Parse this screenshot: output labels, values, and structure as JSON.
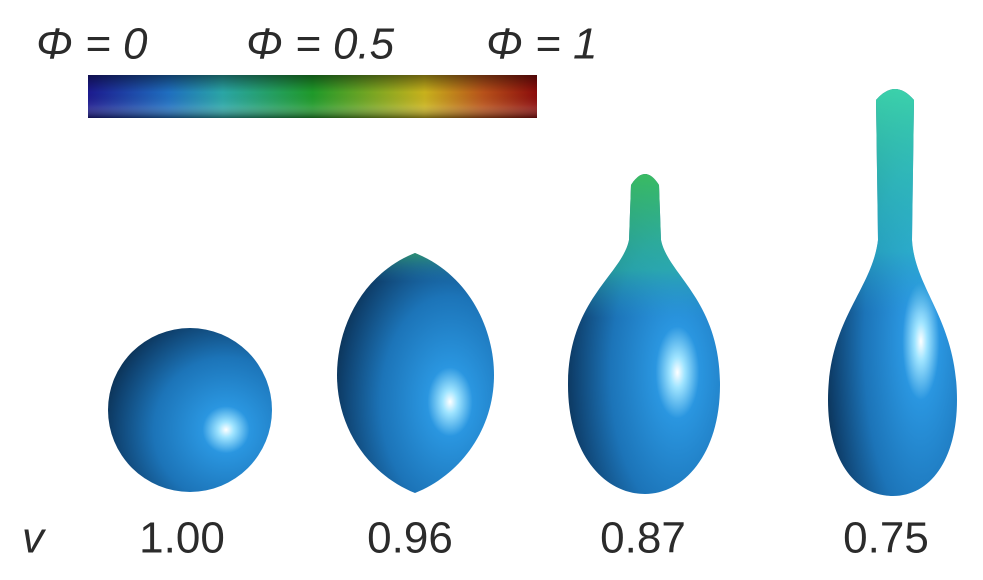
{
  "colorbar": {
    "labels": [
      "Φ = 0",
      "Φ = 0.5",
      "Φ = 1"
    ]
  },
  "row_label": "v",
  "shapes": [
    {
      "label": "1.00"
    },
    {
      "label": "0.96"
    },
    {
      "label": "0.87"
    },
    {
      "label": "0.75"
    }
  ]
}
